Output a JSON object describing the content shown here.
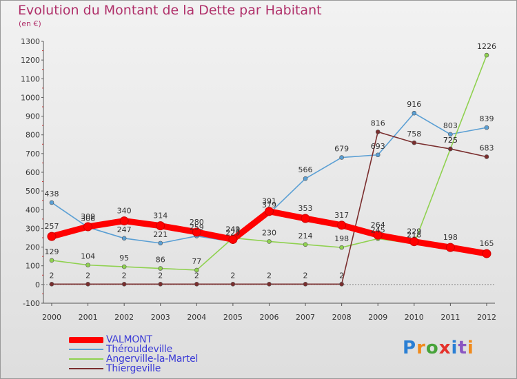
{
  "title": "Evolution du Montant de la Dette par Habitant",
  "subtitle": "(en €)",
  "brand": {
    "text": "Proxiti",
    "colors": [
      "#2a7fd4",
      "#f08a1c",
      "#47a33a",
      "#e5322b",
      "#2a7fd4",
      "#8a56c2",
      "#f08a1c"
    ]
  },
  "chart_data": {
    "type": "line",
    "categories": [
      "2000",
      "2001",
      "2002",
      "2003",
      "2004",
      "2005",
      "2006",
      "2007",
      "2008",
      "2009",
      "2010",
      "2011",
      "2012"
    ],
    "ylim": [
      -100,
      1300
    ],
    "yticks": [
      "-100",
      "0",
      "100",
      "200",
      "300",
      "400",
      "500",
      "600",
      "700",
      "800",
      "900",
      "1000",
      "1100",
      "1200",
      "1300"
    ],
    "grid": false,
    "legend_position": "bottom-left",
    "series": [
      {
        "name": "VALMONT",
        "color": "#ff0000",
        "values": [
          257,
          309,
          340,
          314,
          280,
          241,
          391,
          353,
          317,
          264,
          229,
          198,
          165
        ]
      },
      {
        "name": "Thérouldeville",
        "color": "#5a9fd4",
        "values": [
          438,
          306,
          247,
          221,
          259,
          229,
          379,
          566,
          679,
          693,
          916,
          803,
          839
        ]
      },
      {
        "name": "Angerville-la-Martel",
        "color": "#8fd14f",
        "values": [
          129,
          104,
          95,
          86,
          77,
          249,
          230,
          214,
          198,
          245,
          218,
          725,
          1226
        ]
      },
      {
        "name": "Thiergeville",
        "color": "#7a2e2e",
        "values": [
          2,
          2,
          2,
          2,
          2,
          2,
          2,
          2,
          2,
          816,
          758,
          725,
          683
        ]
      }
    ]
  }
}
